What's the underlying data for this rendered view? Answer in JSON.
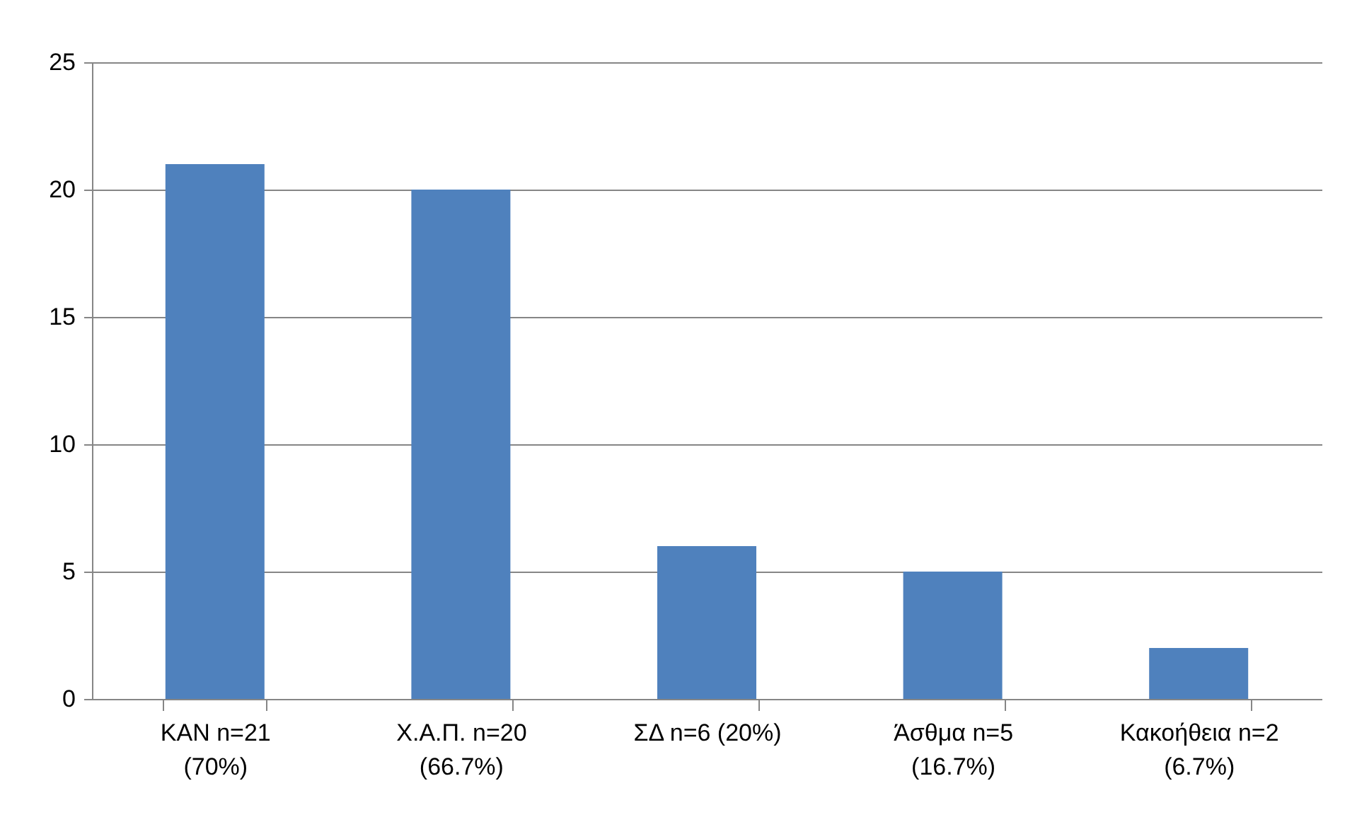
{
  "chart_data": {
    "type": "bar",
    "categories": [
      "ΚΑΝ n=21\n(70%)",
      "Χ.Α.Π. n=20\n(66.7%)",
      "ΣΔ n=6 (20%)",
      "Άσθμα n=5\n(16.7%)",
      "Κακοήθεια n=2\n(6.7%)"
    ],
    "values": [
      21,
      20,
      6,
      5,
      2
    ],
    "color": "#4f81bd",
    "ylim": [
      0,
      25
    ],
    "yticks": [
      0,
      5,
      10,
      15,
      20,
      25
    ],
    "grid": "y"
  }
}
